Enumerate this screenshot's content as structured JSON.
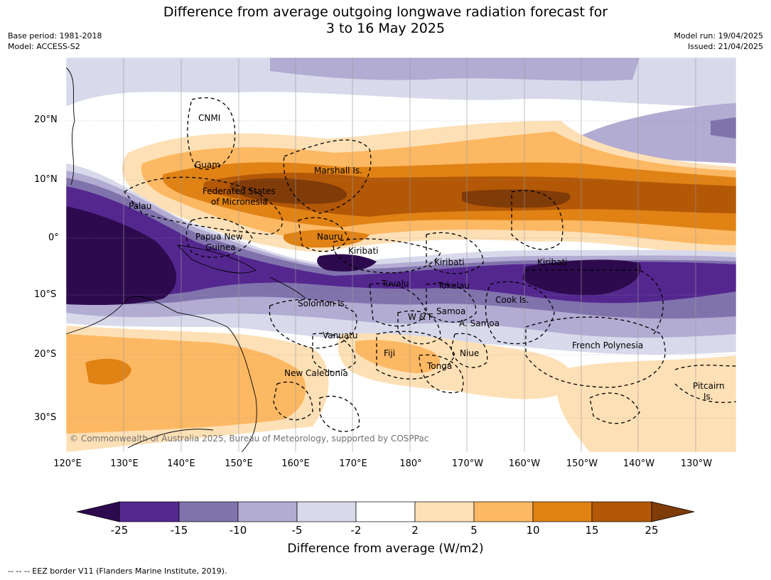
{
  "header": {
    "title_line1": "Difference from average outgoing longwave radiation forecast for",
    "title_line2": "3 to 16 May 2025",
    "base_period": "Base period: 1981-2018",
    "model": "Model: ACCESS-S2",
    "model_run": "Model run: 19/04/2025",
    "issued": "Issued: 21/04/2025"
  },
  "map": {
    "lat_labels": [
      "20°N",
      "10°N",
      "0°",
      "10°S",
      "20°S",
      "30°S"
    ],
    "lon_labels": [
      "120°E",
      "130°E",
      "140°E",
      "150°E",
      "160°E",
      "170°E",
      "180°",
      "170°W",
      "160°W",
      "150°W",
      "140°W",
      "130°W"
    ],
    "regions": [
      "CNMI",
      "Guam",
      "Marshall Is.",
      "Federated States",
      "of Micronesia",
      "Palau",
      "Papua New",
      "Guinea",
      "Nauru",
      "Kiribati",
      "Kiribati",
      "Kiribati",
      "Tuvalu",
      "Tokelau",
      "Cook Is.",
      "Solomon Is.",
      "W & F",
      "Samoa",
      "A. Samoa",
      "Vanuatu",
      "Fiji",
      "Niue",
      "Tonga",
      "French Polynesia",
      "New Caledonia",
      "Pitcairn",
      "Is."
    ],
    "copyright": "© Commonwealth of Australia 2025, Bureau of Meteorology, supported by COSPPac"
  },
  "colorbar": {
    "ticks": [
      "-25",
      "-15",
      "-10",
      "-5",
      "-2",
      "2",
      "5",
      "10",
      "15",
      "25"
    ],
    "colors": [
      "#2d0a4e",
      "#54278f",
      "#8073ac",
      "#b2abd2",
      "#d8daeb",
      "#ffffff",
      "#fee0b6",
      "#fdb863",
      "#e08214",
      "#b35806",
      "#7f3b08"
    ],
    "label": "Difference from average (W/m2)"
  },
  "footer": {
    "text": "--  --  -- EEZ border V11 (Flanders Marine Institute, 2019)."
  }
}
